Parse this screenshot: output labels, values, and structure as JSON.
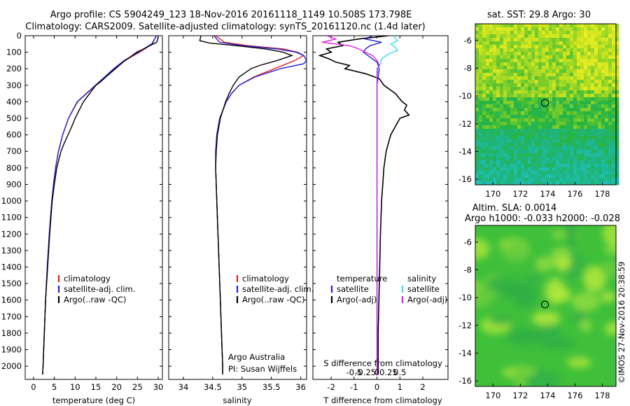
{
  "title_line1": "Argo profile: CS 5904249_123 18-Nov-2016 20161118_1149 10.508S 173.798E",
  "title_line2": "Climatology: CARS2009. Satellite-adjusted climatology: synTS_20161120.nc (1.4d later)",
  "watermark": "©IMOS 27-Nov-2016 20:38:59",
  "colors": {
    "climatology": "#e0201a",
    "satellite": "#2020dd",
    "argo": "#000000",
    "satellite_salinity": "#33e0f0",
    "argo_salinity": "#e020e0"
  },
  "chart_data": [
    {
      "type": "line",
      "xlabel": "temperature (deg C)",
      "xlim": [
        -2,
        31
      ],
      "ylim": [
        2080,
        0
      ],
      "xticks": [
        0,
        5,
        10,
        15,
        20,
        25,
        30
      ],
      "yticks": [
        0,
        100,
        200,
        300,
        400,
        500,
        600,
        700,
        800,
        900,
        1000,
        1100,
        1200,
        1300,
        1400,
        1500,
        1600,
        1700,
        1800,
        1900,
        2000
      ],
      "legend": [
        "climatology",
        "satellite-adj. clim.",
        "Argo(..raw -QC)"
      ],
      "legend_placement": "lower-center",
      "series": [
        {
          "name": "climatology",
          "depth": [
            0,
            50,
            100,
            150,
            200,
            250,
            300,
            350,
            400,
            500,
            600,
            700,
            800,
            900,
            1000,
            1200,
            1400,
            1600,
            1800,
            2000,
            2050
          ],
          "values": [
            29.5,
            28.6,
            25.5,
            22.0,
            19.5,
            17.3,
            15.0,
            12.8,
            10.6,
            8.4,
            7.0,
            6.0,
            5.3,
            4.8,
            4.4,
            3.8,
            3.3,
            2.9,
            2.6,
            2.3,
            2.2
          ]
        },
        {
          "name": "satellite-adj. clim.",
          "depth": [
            0,
            50,
            100,
            150,
            200,
            250,
            300,
            350,
            400,
            500,
            600,
            700,
            800,
            900,
            1000,
            1200,
            1400,
            1600,
            1800,
            2000,
            2050
          ],
          "values": [
            29.6,
            28.4,
            25.2,
            21.8,
            19.3,
            17.1,
            14.9,
            12.7,
            10.5,
            8.4,
            7.0,
            6.0,
            5.3,
            4.8,
            4.4,
            3.8,
            3.3,
            2.9,
            2.6,
            2.3,
            2.2
          ]
        },
        {
          "name": "Argo(..raw -QC)",
          "depth": [
            0,
            20,
            40,
            60,
            80,
            100,
            130,
            160,
            200,
            250,
            280,
            300,
            350,
            400,
            450,
            500,
            550,
            600,
            650,
            700,
            800,
            900,
            1000,
            1200,
            1400,
            1600,
            1800,
            2000,
            2050
          ],
          "values": [
            30.0,
            29.9,
            29.6,
            28.0,
            26.5,
            24.8,
            23.2,
            21.5,
            19.7,
            17.4,
            16.1,
            15.0,
            13.5,
            12.0,
            11.0,
            10.0,
            9.2,
            8.3,
            7.4,
            6.6,
            5.6,
            5.0,
            4.5,
            3.9,
            3.4,
            2.9,
            2.6,
            2.3,
            2.2
          ]
        }
      ]
    },
    {
      "type": "line",
      "xlabel": "salinity",
      "xlim": [
        33.75,
        36.1
      ],
      "ylim": [
        2080,
        0
      ],
      "xticks": [
        34,
        34.5,
        35,
        35.5,
        36
      ],
      "xticklabels": [
        "34",
        "34.5",
        "35",
        "35.5",
        "36"
      ],
      "legend": [
        "climatology",
        "satellite-adj. clim.",
        "Argo(..raw -QC)"
      ],
      "legend_placement": "lower-right",
      "annotation_line1": "Argo Australia",
      "annotation_line2": "PI: Susan Wijffels",
      "series": [
        {
          "name": "climatology",
          "depth": [
            0,
            40,
            60,
            80,
            100,
            120,
            150,
            200,
            250,
            300,
            350,
            400,
            500,
            600,
            700,
            800,
            900,
            1000,
            1200,
            1400,
            1600,
            1800,
            2000,
            2050
          ],
          "values": [
            34.55,
            34.7,
            35.1,
            35.7,
            35.95,
            36.05,
            35.9,
            35.55,
            35.2,
            34.95,
            34.82,
            34.73,
            34.62,
            34.57,
            34.55,
            34.55,
            34.56,
            34.57,
            34.59,
            34.61,
            34.63,
            34.65,
            34.67,
            34.67
          ]
        },
        {
          "name": "satellite-adj. clim.",
          "depth": [
            0,
            40,
            60,
            80,
            100,
            120,
            150,
            170,
            200,
            250,
            300,
            350,
            400,
            500,
            600,
            700,
            800,
            900,
            1000,
            1200,
            1400,
            1600,
            1800,
            2000,
            2050
          ],
          "values": [
            34.52,
            34.62,
            35.0,
            35.6,
            35.92,
            36.05,
            36.1,
            36.05,
            35.65,
            35.22,
            34.95,
            34.82,
            34.73,
            34.62,
            34.57,
            34.55,
            34.55,
            34.56,
            34.57,
            34.59,
            34.61,
            34.63,
            34.65,
            34.67,
            34.67
          ]
        },
        {
          "name": "Argo(..raw -QC)",
          "depth": [
            0,
            30,
            45,
            60,
            80,
            100,
            120,
            150,
            180,
            200,
            250,
            300,
            350,
            400,
            500,
            600,
            700,
            800,
            900,
            1000,
            1200,
            1400,
            1600,
            1800,
            2000,
            2050
          ],
          "values": [
            34.3,
            34.28,
            34.45,
            34.9,
            35.4,
            35.7,
            35.85,
            35.6,
            35.3,
            35.15,
            34.95,
            34.85,
            34.78,
            34.72,
            34.63,
            34.58,
            34.56,
            34.55,
            34.56,
            34.57,
            34.59,
            34.61,
            34.63,
            34.65,
            34.67,
            34.67
          ]
        }
      ]
    },
    {
      "type": "line",
      "xlabel": "T difference from climatology",
      "xlabel2": "S difference from climatology",
      "xlim": [
        -2.8,
        3.1
      ],
      "ylim": [
        2080,
        0
      ],
      "xticks": [
        -2,
        -1,
        0,
        1,
        2
      ],
      "xticks_s": [
        -0.5,
        -0.25,
        0,
        0.25,
        0.5
      ],
      "xticklabels_s": [
        "-0.5",
        "-0.25",
        "0",
        "0.25",
        "0.5"
      ],
      "legend_temperature_title": "temperature",
      "legend_salinity_title": "salinity",
      "legend_temperature": [
        "satellite",
        "Argo(-adj)"
      ],
      "legend_salinity": [
        "satellite",
        "Argo(-adj)"
      ],
      "legend_placement": "lower",
      "series": [
        {
          "name": "satellite",
          "depth": [
            0,
            20,
            40,
            60,
            80,
            100,
            130,
            160,
            200,
            250,
            300,
            350,
            400,
            500,
            600,
            800,
            1000,
            1500,
            2050
          ],
          "values": [
            -0.2,
            -0.5,
            0.2,
            -0.3,
            -0.5,
            -0.6,
            -0.3,
            0.0,
            0.1,
            0.05,
            0.0,
            0.0,
            0.0,
            0.0,
            0.0,
            0.0,
            0.0,
            0.0,
            0.0
          ]
        },
        {
          "name": "Argo(-adj)",
          "depth": [
            0,
            20,
            40,
            60,
            80,
            100,
            120,
            140,
            160,
            180,
            200,
            230,
            260,
            300,
            350,
            400,
            420,
            450,
            480,
            500,
            550,
            600,
            650,
            700,
            800,
            900,
            1000,
            1200,
            1500,
            1800,
            2050
          ],
          "values": [
            0.5,
            -0.8,
            -1.7,
            -1.5,
            -2.2,
            -2.0,
            -2.5,
            -2.1,
            -1.8,
            -1.2,
            -1.4,
            -0.5,
            0.1,
            0.3,
            0.8,
            1.1,
            1.3,
            1.2,
            1.4,
            1.0,
            0.8,
            0.6,
            0.5,
            0.4,
            0.3,
            0.25,
            0.2,
            0.15,
            0.1,
            0.05,
            0.05
          ]
        },
        {
          "name": "satellite (salinity)",
          "depth": [
            0,
            30,
            50,
            70,
            90,
            110,
            140,
            170,
            200,
            250,
            300,
            400,
            500,
            700,
            1000,
            1500,
            2050
          ],
          "values": [
            0.7,
            0.9,
            0.6,
            0.8,
            0.9,
            0.5,
            0.2,
            0.15,
            0.05,
            0.0,
            0.0,
            0.0,
            0.0,
            0.0,
            0.0,
            0.0,
            0.0
          ]
        },
        {
          "name": "Argo(-adj) (salinity)",
          "depth": [
            0,
            20,
            40,
            60,
            80,
            100,
            120,
            150,
            180,
            200,
            250,
            300,
            400,
            500,
            700,
            1000,
            1500,
            2050
          ],
          "values": [
            -2.2,
            -1.8,
            -2.4,
            -1.2,
            -0.8,
            -0.5,
            -0.2,
            0.0,
            0.1,
            0.0,
            0.0,
            0.0,
            0.0,
            0.0,
            0.0,
            0.0,
            0.0,
            0.0
          ]
        }
      ]
    },
    {
      "type": "heatmap",
      "title": "sat. SST: 29.8 Argo: 30",
      "xticks": [
        170,
        172,
        174,
        176,
        178
      ],
      "yticks": [
        -6,
        -8,
        -10,
        -12,
        -14,
        -16
      ],
      "xlim": [
        168.7,
        179.0
      ],
      "ylim": [
        -16.4,
        -4.8
      ],
      "marker": {
        "lon": 173.8,
        "lat": -10.5
      }
    },
    {
      "type": "heatmap",
      "title_line1": "Altim. SLA: 0.0014",
      "title_line2": "Argo h1000: -0.033 h2000: -0.028",
      "xticks": [
        170,
        172,
        174,
        176,
        178
      ],
      "yticks": [
        -6,
        -8,
        -10,
        -12,
        -14,
        -16
      ],
      "xlim": [
        168.7,
        179.0
      ],
      "ylim": [
        -16.4,
        -4.8
      ],
      "marker": {
        "lon": 173.8,
        "lat": -10.5
      }
    }
  ]
}
